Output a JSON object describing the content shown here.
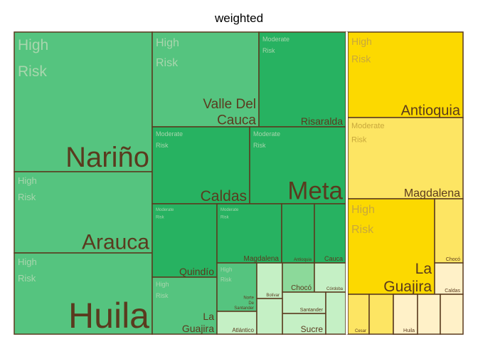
{
  "chart_data": {
    "type": "treemap",
    "title": "weighted",
    "colors": {
      "high_risk_green": "#55c47f",
      "moderate_risk_green": "#27b261",
      "high_risk_yellow": "#fcd900",
      "moderate_risk_yellow": "#fde563",
      "light_green": "#c5f0c5",
      "mid_green": "#8cd99a",
      "pale_yellow": "#fff1c8",
      "border": "#5a3a1e",
      "group_separator": "#ffffff",
      "label_text": "#5a3a1e",
      "risk_label_green": "#a8d6ad",
      "risk_label_yellow": "#c8a83c"
    },
    "groups": [
      {
        "name": "group-green",
        "rects": [
          {
            "id": "narino",
            "label": "Nariño",
            "risk": "High Risk",
            "fill": "high_risk_green",
            "value": 3.25
          },
          {
            "id": "arauca",
            "label": "Arauca",
            "risk": "High Risk",
            "fill": "high_risk_green",
            "value": 1.24
          },
          {
            "id": "huila",
            "label": "Huila",
            "risk": "High Risk",
            "fill": "high_risk_green",
            "value": 1.22
          },
          {
            "id": "valle-del-cauca",
            "label": "Valle Del Cauca",
            "risk": "High Risk",
            "fill": "high_risk_green",
            "value": 1.65
          },
          {
            "id": "risaralda",
            "label": "Risaralda",
            "risk": "Moderate Risk",
            "fill": "moderate_risk_green",
            "value": 1.55
          },
          {
            "id": "caldas",
            "label": "Caldas",
            "risk": "Moderate Risk",
            "fill": "moderate_risk_green",
            "value": 1.48
          },
          {
            "id": "meta",
            "label": "Meta",
            "risk": "Moderate Risk",
            "fill": "moderate_risk_green",
            "value": 1.48
          },
          {
            "id": "quindio",
            "label": "Quindío",
            "risk": "Moderate Risk",
            "fill": "moderate_risk_green",
            "value": 1.0
          },
          {
            "id": "magdalena-g",
            "label": "Magdalena",
            "risk": "Moderate Risk",
            "fill": "moderate_risk_green",
            "value": 0.85
          },
          {
            "id": "antioquia-g",
            "label": "Antioquia",
            "risk": "",
            "fill": "moderate_risk_green",
            "value": 0.45
          },
          {
            "id": "cauca",
            "label": "Cauca",
            "risk": "",
            "fill": "moderate_risk_green",
            "value": 0.45
          },
          {
            "id": "la-guajira-g",
            "label": "La Guajira",
            "risk": "High Risk",
            "fill": "high_risk_green",
            "value": 0.87
          },
          {
            "id": "norte-de-santander",
            "label": "Norte De Santander",
            "risk": "High Risk",
            "fill": "high_risk_green",
            "value": 0.64
          },
          {
            "id": "atlantico",
            "label": "Atlántico",
            "risk": "",
            "fill": "light_green",
            "value": 0.3
          },
          {
            "id": "bolivar",
            "label": "Bolívar",
            "risk": "",
            "fill": "light_green",
            "value": 0.16
          },
          {
            "id": "choco-g",
            "label": "Chocó",
            "risk": "",
            "fill": "mid_green",
            "value": 0.24
          },
          {
            "id": "cordoba",
            "label": "Córdoba",
            "risk": "",
            "fill": "light_green",
            "value": 0.2
          },
          {
            "id": "santander",
            "label": "Santander",
            "risk": "",
            "fill": "light_green",
            "value": 0.17
          },
          {
            "id": "sucre",
            "label": "Sucre",
            "risk": "",
            "fill": "light_green",
            "value": 0.28
          }
        ]
      },
      {
        "name": "group-yellow",
        "rects": [
          {
            "id": "antioquia-y",
            "label": "Antioquia",
            "risk": "High Risk",
            "fill": "high_risk_yellow",
            "value": 1.2
          },
          {
            "id": "magdalena-y",
            "label": "Magdalena",
            "risk": "Moderate Risk",
            "fill": "moderate_risk_yellow",
            "value": 1.17
          },
          {
            "id": "la-guajira-y",
            "label": "La Guajira",
            "risk": "High Risk",
            "fill": "high_risk_yellow",
            "value": 1.33
          },
          {
            "id": "choco-y",
            "label": "Chocó",
            "risk": "",
            "fill": "moderate_risk_yellow",
            "value": 0.32
          },
          {
            "id": "caldas-y",
            "label": "Caldas",
            "risk": "",
            "fill": "pale_yellow",
            "value": 0.3
          },
          {
            "id": "cesar",
            "label": "Cesar",
            "risk": "",
            "fill": "moderate_risk_yellow",
            "value": 0.12
          },
          {
            "id": "y-small-2",
            "label": "",
            "risk": "",
            "fill": "moderate_risk_yellow",
            "value": 0.14
          },
          {
            "id": "y-small-3",
            "label": "",
            "risk": "",
            "fill": "pale_yellow",
            "value": 0.14
          },
          {
            "id": "huila-y",
            "label": "Huila",
            "risk": "",
            "fill": "pale_yellow",
            "value": 0.14
          },
          {
            "id": "y-small-5",
            "label": "",
            "risk": "",
            "fill": "pale_yellow",
            "value": 0.14
          },
          {
            "id": "y-small-6",
            "label": "",
            "risk": "",
            "fill": "pale_yellow",
            "value": 0.14
          }
        ]
      }
    ]
  }
}
